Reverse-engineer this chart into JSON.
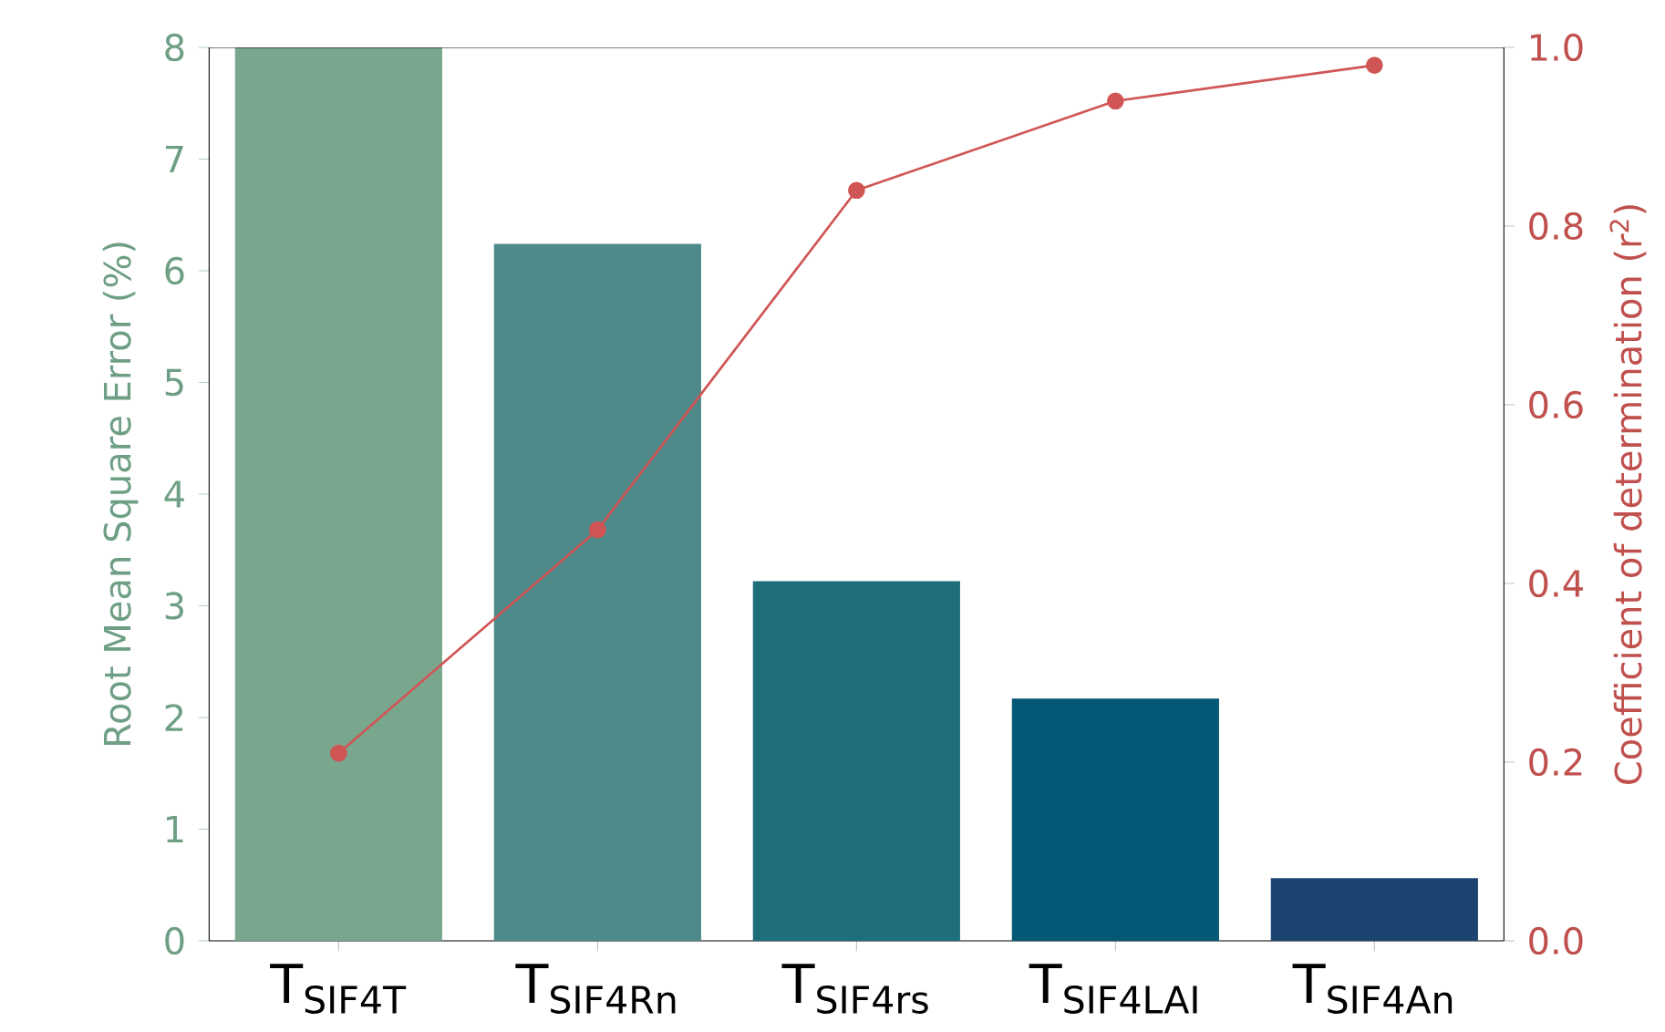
{
  "chart_data": {
    "type": "bar",
    "categories": [
      "T$_{SIF4T}$",
      "T$_{SIF4Rn}$",
      "T$_{SIF4rs}$",
      "T$_{SIF4LAI}$",
      "T$_{SIF4An}$"
    ],
    "ylabel": "Root Mean Square Error (%)",
    "y2label": "Coefficient of determination (r$^{2}$)",
    "ylim": [
      0,
      8
    ],
    "yticks": [
      0,
      1,
      2,
      3,
      4,
      5,
      6,
      7,
      8
    ],
    "y2lim": [
      0,
      1.0
    ],
    "y2ticks": [
      {
        "value": 0,
        "label": "0.0"
      },
      {
        "value": 0.2,
        "label": "0.2"
      },
      {
        "value": 0.4,
        "label": "0.4"
      },
      {
        "value": 0.6,
        "label": "0.6"
      },
      {
        "value": 0.8,
        "label": "0.8"
      },
      {
        "value": 1.0,
        "label": "1.0"
      }
    ],
    "series": [
      {
        "values": [
          8.0,
          6.24,
          3.22,
          2.17,
          0.56
        ],
        "colors": [
          "#78a78e",
          "#4f8a8b",
          "#1f6e7c",
          "#045775",
          "#1c4470"
        ]
      },
      {
        "type": "line",
        "axis": "y2",
        "color": "#d05555",
        "marker": "circle",
        "values": [
          0.21,
          0.46,
          0.84,
          0.94,
          0.98
        ]
      }
    ],
    "grid": false
  }
}
